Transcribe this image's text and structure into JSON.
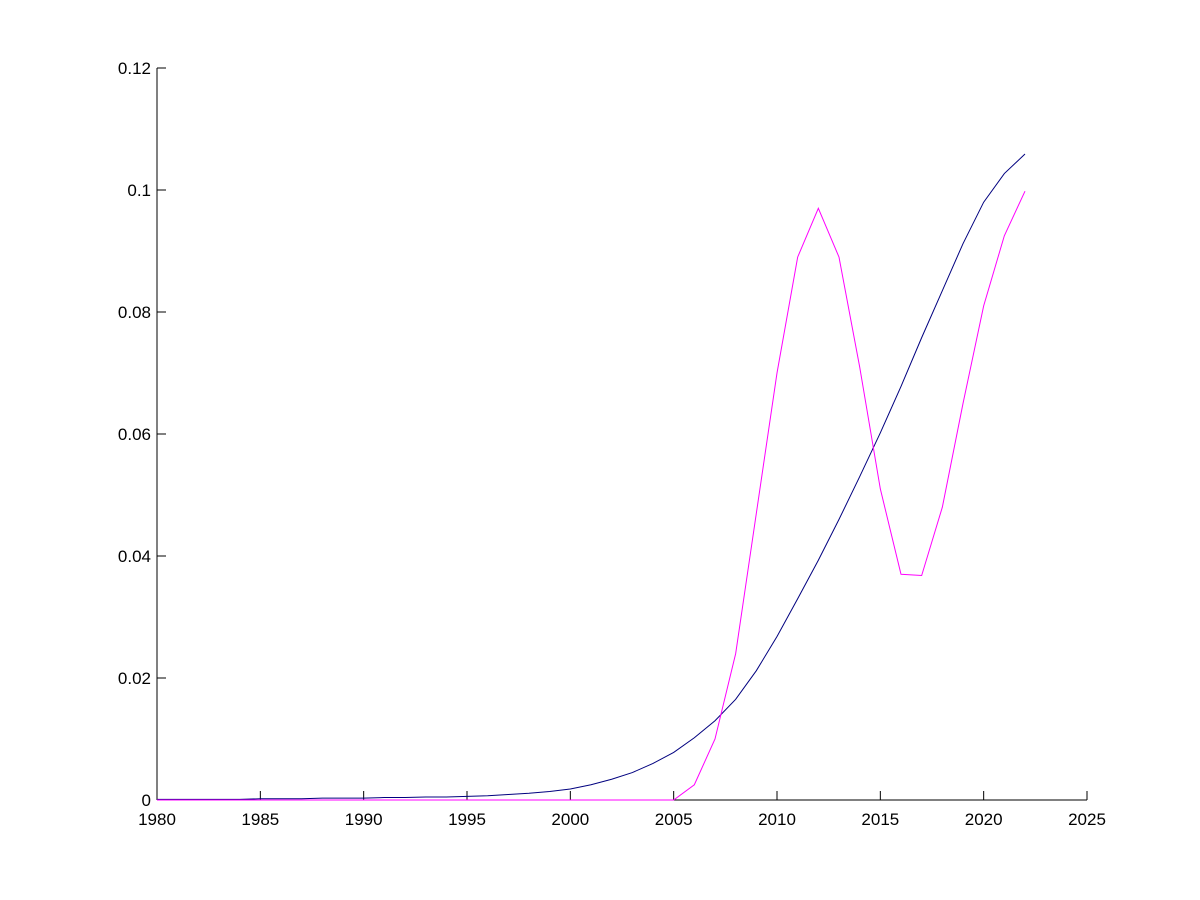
{
  "chart_data": {
    "type": "line",
    "x": [
      1980,
      1981,
      1982,
      1983,
      1984,
      1985,
      1986,
      1987,
      1988,
      1989,
      1990,
      1991,
      1992,
      1993,
      1994,
      1995,
      1996,
      1997,
      1998,
      1999,
      2000,
      2001,
      2002,
      2003,
      2004,
      2005,
      2006,
      2007,
      2008,
      2009,
      2010,
      2011,
      2012,
      2013,
      2014,
      2015,
      2016,
      2017,
      2018,
      2019,
      2020,
      2021,
      2022
    ],
    "series": [
      {
        "color": "#00007f",
        "values": [
          0.0001,
          0.0001,
          0.0001,
          0.0001,
          0.0001,
          0.0002,
          0.0002,
          0.0002,
          0.0003,
          0.0003,
          0.0003,
          0.0004,
          0.0004,
          0.0005,
          0.0005,
          0.0006,
          0.0007,
          0.0009,
          0.0011,
          0.0014,
          0.0018,
          0.0025,
          0.0034,
          0.0045,
          0.006,
          0.0078,
          0.0102,
          0.013,
          0.0165,
          0.0212,
          0.0268,
          0.033,
          0.0393,
          0.046,
          0.053,
          0.0602,
          0.0678,
          0.0758,
          0.0835,
          0.0912,
          0.098,
          0.1027,
          0.1059
        ]
      },
      {
        "color": "#ff00ff",
        "values": [
          0,
          0,
          0,
          0,
          0,
          0,
          0,
          0,
          0,
          0,
          0,
          0,
          0,
          0,
          0,
          0,
          0,
          0,
          0,
          0,
          0,
          0,
          0,
          0,
          0,
          0,
          0.0025,
          0.01,
          0.024,
          0.047,
          0.07,
          0.089,
          0.097,
          0.089,
          0.071,
          0.051,
          0.037,
          0.0368,
          0.048,
          0.065,
          0.081,
          0.0925,
          0.0998
        ]
      }
    ],
    "xlim": [
      1980,
      2025
    ],
    "xticks": [
      1980,
      1985,
      1990,
      1995,
      2000,
      2005,
      2010,
      2015,
      2020,
      2025
    ],
    "ylim": [
      0,
      0.12
    ],
    "yticks": [
      0,
      0.02,
      0.04,
      0.06,
      0.08,
      0.1,
      0.12
    ]
  }
}
